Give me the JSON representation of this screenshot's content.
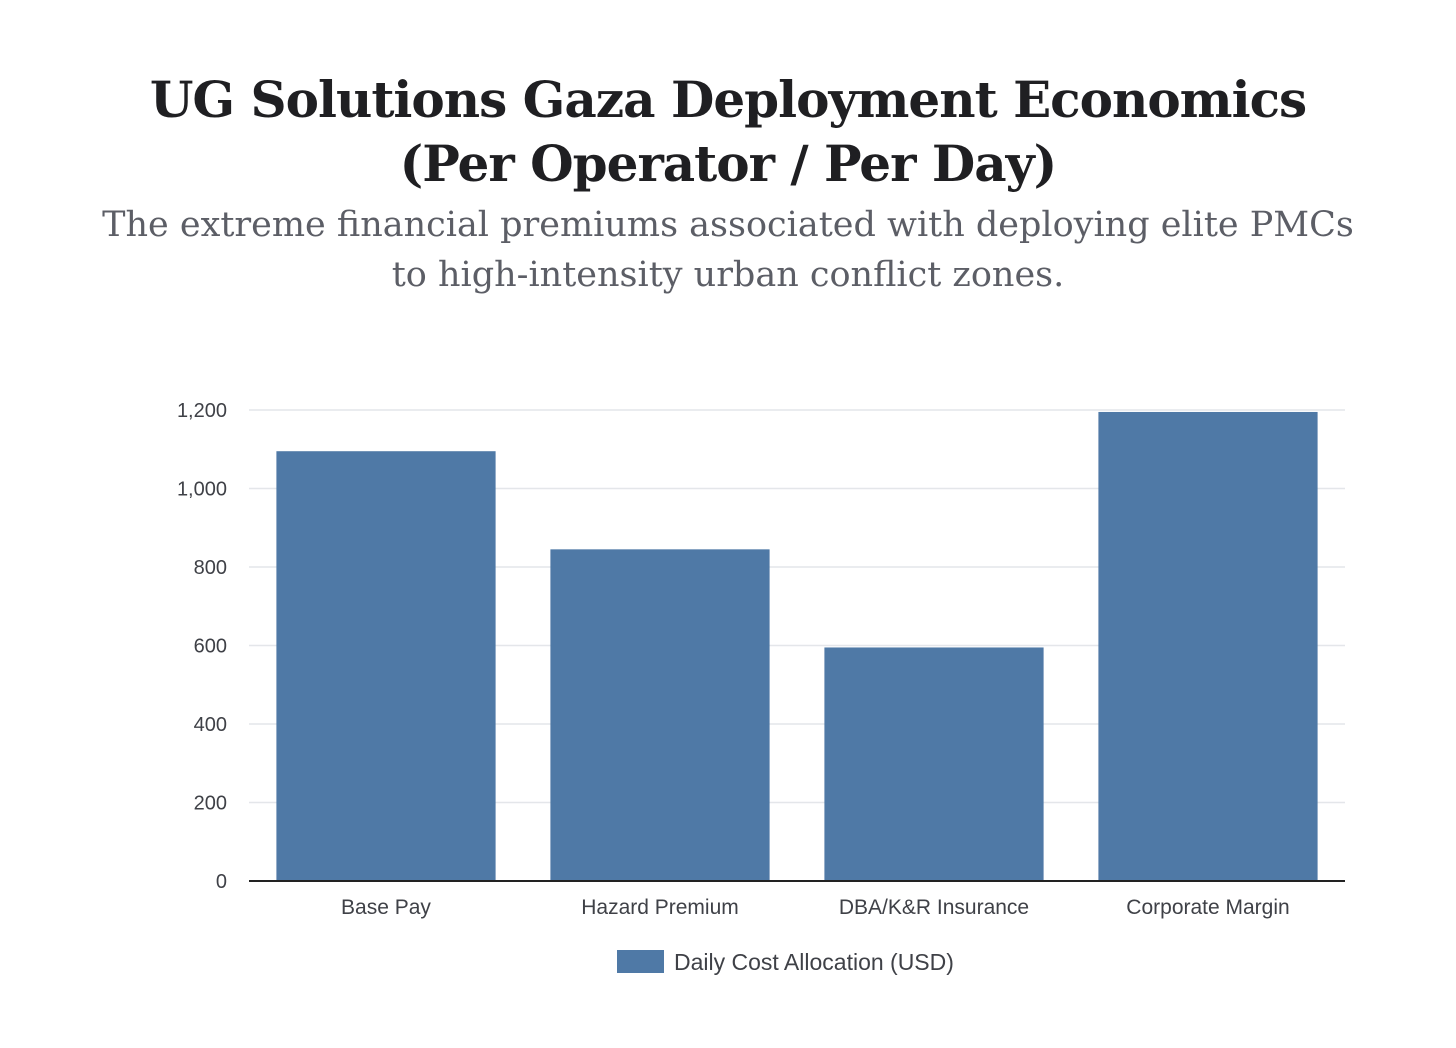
{
  "header": {
    "title": "UG Solutions Gaza Deployment Economics (Per Operator / Per Day)",
    "subtitle": "The extreme financial premiums associated with deploying elite PMCs to high-intensity urban conflict zones."
  },
  "colors": {
    "bar": "#4f79a6",
    "grid": "#e4e6ea",
    "axis": "#222222"
  },
  "chart_data": {
    "type": "bar",
    "title": "UG Solutions Gaza Deployment Economics (Per Operator / Per Day)",
    "subtitle": "The extreme financial premiums associated with deploying elite PMCs to high-intensity urban conflict zones.",
    "categories": [
      "Base Pay",
      "Hazard Premium",
      "DBA/K&R Insurance",
      "Corporate Margin"
    ],
    "series": [
      {
        "name": "Daily Cost Allocation (USD)",
        "values": [
          1095,
          845,
          595,
          1195
        ]
      }
    ],
    "xlabel": "",
    "ylabel": "",
    "ylim": [
      0,
      1200
    ],
    "yticks": [
      0,
      200,
      400,
      600,
      800,
      1000,
      1200
    ],
    "ytick_labels": [
      "0",
      "200",
      "400",
      "600",
      "800",
      "1,000",
      "1,200"
    ],
    "grid": true,
    "legend": "bottom-center"
  }
}
